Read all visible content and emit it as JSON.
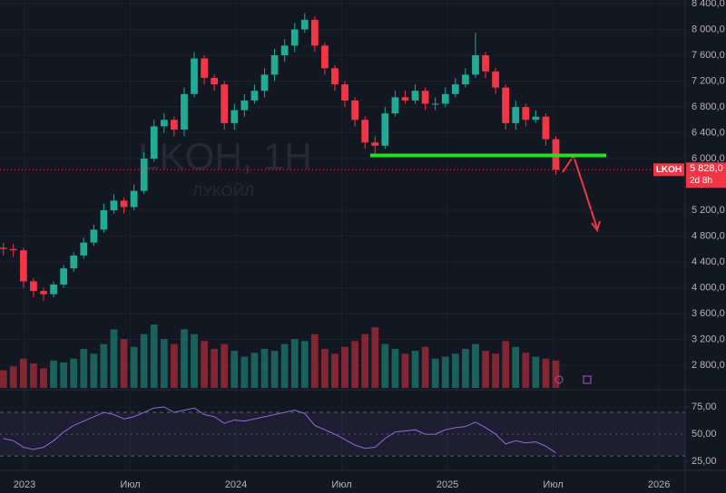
{
  "chart_data": {
    "type": "candlestick",
    "title": "LKOH, 1Н",
    "subtitle": "ЛУКОЙЛ",
    "up_color": "#22ab94",
    "down_color": "#f23645",
    "x": [
      2022.9,
      2022.9475,
      2022.995,
      2023.0425,
      2023.09,
      2023.1375,
      2023.185,
      2023.2325,
      2023.28,
      2023.3275,
      2023.375,
      2023.4225,
      2023.47,
      2023.5175,
      2023.565,
      2023.6125,
      2023.66,
      2023.7075,
      2023.755,
      2023.8025,
      2023.85,
      2023.8975,
      2023.945,
      2023.9925,
      2024.04,
      2024.0875,
      2024.135,
      2024.1825,
      2024.23,
      2024.2775,
      2024.325,
      2024.3725,
      2024.42,
      2024.4675,
      2024.515,
      2024.5625,
      2024.61,
      2024.6575,
      2024.705,
      2024.7525,
      2024.8,
      2024.8475,
      2024.895,
      2024.9425,
      2024.99,
      2025.0375,
      2025.085,
      2025.1325,
      2025.18,
      2025.2275,
      2025.275,
      2025.3225,
      2025.37,
      2025.4175,
      2025.465,
      2025.5125
    ],
    "open": [
      4620,
      4600,
      4580,
      4100,
      3950,
      3900,
      4050,
      4300,
      4500,
      4700,
      4900,
      5200,
      5350,
      5250,
      5500,
      6000,
      6500,
      6600,
      6450,
      7000,
      7550,
      7250,
      7150,
      6550,
      6750,
      6900,
      7050,
      7300,
      7600,
      7750,
      8000,
      8150,
      7750,
      7400,
      7150,
      6900,
      6600,
      6250,
      6200,
      6700,
      6950,
      6900,
      7050,
      6850,
      6850,
      7000,
      7150,
      7300,
      7600,
      7350,
      7100,
      6550,
      6800,
      6600,
      6650,
      6300
    ],
    "high": [
      4700,
      4680,
      4620,
      4150,
      4000,
      4100,
      4350,
      4550,
      4780,
      4980,
      5300,
      5450,
      5400,
      5600,
      6100,
      6600,
      6700,
      6650,
      7100,
      7650,
      7600,
      7300,
      7200,
      6850,
      7000,
      7150,
      7400,
      7700,
      7850,
      8100,
      8250,
      8200,
      7800,
      7450,
      7200,
      6950,
      6650,
      6350,
      6800,
      7050,
      7050,
      7150,
      7100,
      6950,
      7100,
      7250,
      7400,
      7950,
      7650,
      7400,
      7150,
      6900,
      6850,
      6750,
      6700,
      6350
    ],
    "low": [
      4500,
      4480,
      4000,
      3850,
      3800,
      3850,
      4000,
      4250,
      4450,
      4650,
      4850,
      5150,
      5150,
      5200,
      5450,
      5950,
      6400,
      6350,
      6350,
      6950,
      7150,
      7050,
      6450,
      6450,
      6650,
      6850,
      6950,
      7200,
      7500,
      7650,
      7950,
      7650,
      7300,
      7050,
      6800,
      6500,
      6150,
      6050,
      6150,
      6650,
      6850,
      6850,
      6750,
      6750,
      6800,
      6950,
      7100,
      7250,
      7250,
      7000,
      6450,
      6450,
      6500,
      6550,
      6200,
      5750
    ],
    "close": [
      4600,
      4580,
      4100,
      3950,
      3900,
      4050,
      4300,
      4500,
      4700,
      4900,
      5200,
      5350,
      5250,
      5500,
      6000,
      6500,
      6600,
      6450,
      7000,
      7550,
      7250,
      7150,
      6550,
      6750,
      6900,
      7050,
      7300,
      7600,
      7750,
      8000,
      8150,
      7750,
      7400,
      7150,
      6900,
      6600,
      6250,
      6200,
      6700,
      6950,
      6900,
      7050,
      6850,
      6850,
      7000,
      7150,
      7300,
      7600,
      7350,
      7100,
      6550,
      6800,
      6600,
      6650,
      6300,
      5828
    ],
    "volume": [
      18,
      22,
      30,
      25,
      20,
      28,
      26,
      30,
      40,
      35,
      45,
      60,
      50,
      42,
      55,
      65,
      50,
      45,
      60,
      55,
      48,
      40,
      45,
      38,
      32,
      36,
      40,
      38,
      45,
      50,
      48,
      55,
      40,
      35,
      42,
      48,
      55,
      62,
      45,
      40,
      35,
      38,
      42,
      30,
      32,
      35,
      40,
      45,
      38,
      35,
      48,
      42,
      36,
      32,
      30,
      28
    ],
    "xlim": [
      2022.884,
      2026.124
    ],
    "xticks": [
      {
        "value": 2023,
        "label": "2023"
      },
      {
        "value": 2023.5,
        "label": "Июл"
      },
      {
        "value": 2024,
        "label": "2024"
      },
      {
        "value": 2024.5,
        "label": "Июл"
      },
      {
        "value": 2025,
        "label": "2025"
      },
      {
        "value": 2025.5,
        "label": "Июл"
      },
      {
        "value": 2026,
        "label": "2026"
      }
    ],
    "ylim": [
      2422,
      8456
    ],
    "yticks": [
      {
        "value": 2800,
        "label": "2 800,0"
      },
      {
        "value": 3200,
        "label": "3 200,0"
      },
      {
        "value": 3600,
        "label": "3 600,0"
      },
      {
        "value": 4000,
        "label": "4 000,0"
      },
      {
        "value": 4400,
        "label": "4 400,0"
      },
      {
        "value": 4800,
        "label": "4 800,0"
      },
      {
        "value": 5200,
        "label": "5 200,0"
      },
      {
        "value": 6000,
        "label": "6 000,0"
      },
      {
        "value": 6400,
        "label": "6 400,0"
      },
      {
        "value": 6800,
        "label": "6 800,0"
      },
      {
        "value": 7200,
        "label": "7 200,0"
      },
      {
        "value": 7600,
        "label": "7 600,0"
      },
      {
        "value": 8000,
        "label": "8 000,0"
      },
      {
        "value": 8400,
        "label": "8 400,0"
      }
    ],
    "price_tag": {
      "symbol": "LKOH",
      "value": 5828,
      "label": "5 828,0",
      "countdown": "2d 8h"
    },
    "level": {
      "value": 6050,
      "from": 2024.635,
      "to": 2025.751,
      "color": "#22e022"
    },
    "rsi": {
      "color": "#8e6fd8",
      "values": [
        46,
        44,
        38,
        36,
        38,
        44,
        52,
        58,
        62,
        66,
        70,
        68,
        64,
        66,
        70,
        74,
        75,
        70,
        72,
        74,
        68,
        66,
        60,
        63,
        62,
        64,
        66,
        68,
        70,
        72,
        69,
        58,
        54,
        50,
        45,
        40,
        37,
        38,
        46,
        52,
        53,
        54,
        50,
        50,
        54,
        56,
        57,
        61,
        56,
        50,
        41,
        44,
        42,
        43,
        39,
        33
      ],
      "ylim": [
        16.8,
        82.5
      ],
      "yticks": [
        {
          "value": 25,
          "label": "25,00"
        },
        {
          "value": 50,
          "label": "50,00"
        },
        {
          "value": 75,
          "label": "75,00"
        }
      ],
      "band": [
        30,
        70
      ]
    }
  }
}
